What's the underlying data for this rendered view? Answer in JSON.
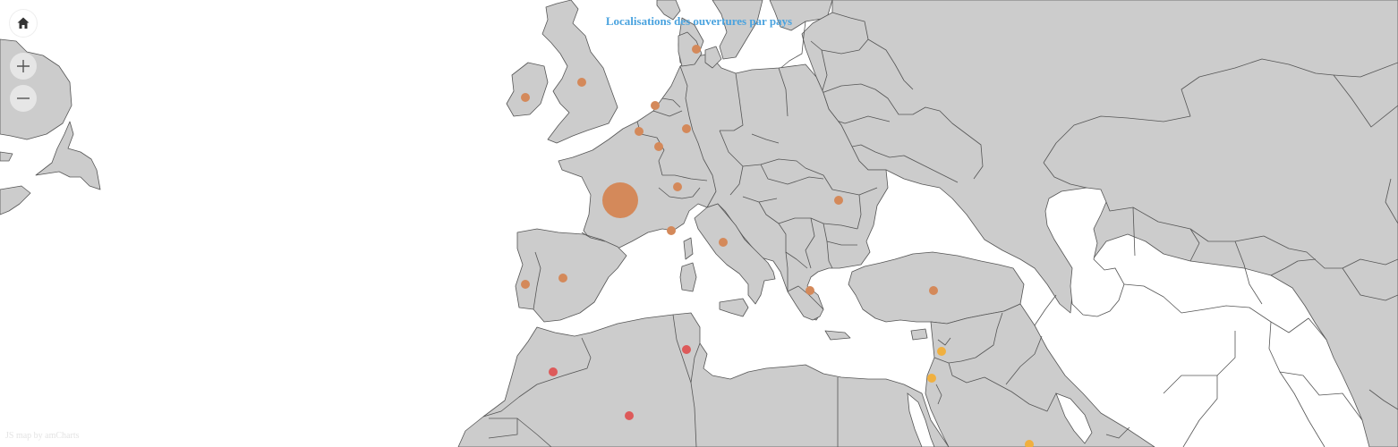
{
  "map": {
    "title": "Localisations des ouvertures par pays",
    "credit": "JS map by amCharts",
    "colors": {
      "land": "#cccccc",
      "border": "#555555",
      "title": "#4aa3df",
      "europe_marker": "#d4895a",
      "africa_marker": "#dd5a5a",
      "middle_east_marker": "#f0b040"
    },
    "controls": {
      "home_icon": "home-icon",
      "zoom_in_icon": "plus-icon",
      "zoom_out_icon": "minus-icon"
    },
    "markers": [
      {
        "name": "ireland",
        "group": "europe_marker",
        "size": "small"
      },
      {
        "name": "united-kingdom",
        "group": "europe_marker",
        "size": "small"
      },
      {
        "name": "denmark",
        "group": "europe_marker",
        "size": "small"
      },
      {
        "name": "netherlands",
        "group": "europe_marker",
        "size": "small"
      },
      {
        "name": "belgium",
        "group": "europe_marker",
        "size": "small"
      },
      {
        "name": "germany",
        "group": "europe_marker",
        "size": "small"
      },
      {
        "name": "luxembourg",
        "group": "europe_marker",
        "size": "small"
      },
      {
        "name": "france",
        "group": "europe_marker",
        "size": "large"
      },
      {
        "name": "switzerland",
        "group": "europe_marker",
        "size": "small"
      },
      {
        "name": "monaco",
        "group": "europe_marker",
        "size": "small"
      },
      {
        "name": "italy",
        "group": "europe_marker",
        "size": "small"
      },
      {
        "name": "romania",
        "group": "europe_marker",
        "size": "small"
      },
      {
        "name": "spain",
        "group": "europe_marker",
        "size": "small"
      },
      {
        "name": "portugal",
        "group": "europe_marker",
        "size": "small"
      },
      {
        "name": "greece",
        "group": "europe_marker",
        "size": "small"
      },
      {
        "name": "turkey",
        "group": "europe_marker",
        "size": "small"
      },
      {
        "name": "morocco",
        "group": "africa_marker",
        "size": "small"
      },
      {
        "name": "tunisia",
        "group": "africa_marker",
        "size": "small"
      },
      {
        "name": "algeria",
        "group": "africa_marker",
        "size": "small"
      },
      {
        "name": "lebanon",
        "group": "middle_east_marker",
        "size": "small"
      },
      {
        "name": "israel",
        "group": "middle_east_marker",
        "size": "small"
      },
      {
        "name": "saudi-arabia",
        "group": "middle_east_marker",
        "size": "small"
      }
    ]
  }
}
